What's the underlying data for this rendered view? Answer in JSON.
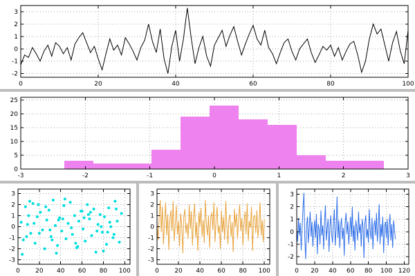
{
  "style": {
    "background": "#ffffff",
    "frame_color": "#bdbdbd",
    "grid_color": "#a0a0a0",
    "axis_color": "#000000",
    "tick_font_size": 9
  },
  "chart_data": [
    {
      "id": "top-noise-line",
      "type": "line",
      "color": "#000000",
      "xlim": [
        0,
        100
      ],
      "ylim": [
        -2.3,
        3.5
      ],
      "xticks": [
        0,
        20,
        40,
        60,
        80,
        100
      ],
      "yticks": [
        -2,
        -1,
        0,
        1,
        2,
        3
      ],
      "grid": true,
      "x0": 0,
      "dx": 1,
      "y": [
        -1.3,
        -0.5,
        -0.7,
        0.1,
        -0.4,
        -1.0,
        -0.2,
        0.3,
        -0.6,
        0.5,
        0.2,
        -0.4,
        0.1,
        -0.9,
        0.4,
        0.9,
        1.3,
        0.5,
        -0.3,
        0.2,
        -0.8,
        -1.7,
        -0.4,
        0.8,
        -0.1,
        0.3,
        -0.5,
        0.9,
        0.4,
        -0.2,
        -0.9,
        0.1,
        0.7,
        2.0,
        0.6,
        -0.3,
        1.6,
        -0.8,
        -2.0,
        0.2,
        1.5,
        -1.0,
        0.8,
        3.3,
        0.9,
        -1.2,
        0.1,
        1.0,
        -0.6,
        -1.4,
        0.3,
        0.9,
        1.5,
        0.2,
        1.1,
        1.8,
        0.6,
        -0.5,
        0.4,
        1.2,
        1.9,
        0.8,
        0.3,
        1.5,
        0.1,
        -0.4,
        -1.2,
        -0.3,
        0.5,
        0.8,
        -0.2,
        -0.9,
        0.0,
        0.4,
        0.8,
        -0.3,
        -1.1,
        -0.5,
        0.2,
        -0.1,
        0.3,
        -0.6,
        0.1,
        -0.9,
        -0.2,
        0.4,
        0.6,
        -0.5,
        -1.9,
        -1.0,
        0.8,
        2.0,
        1.2,
        1.6,
        0.3,
        -1.0,
        0.5,
        1.4,
        -0.2,
        -1.2,
        1.5
      ]
    },
    {
      "id": "pink-histogram",
      "type": "histogram",
      "color": "#ee82ee",
      "xlim": [
        -3,
        3
      ],
      "ylim": [
        0,
        26
      ],
      "xticks": [
        -3,
        -2,
        -1,
        0,
        1,
        2,
        3
      ],
      "yticks": [
        0,
        5,
        10,
        15,
        20,
        25
      ],
      "grid": true,
      "bin_width": 0.45,
      "centers": [
        -2.1,
        -1.65,
        -1.2,
        -0.75,
        -0.3,
        0.15,
        0.6,
        1.05,
        1.5,
        1.95,
        2.4
      ],
      "counts": [
        3,
        2,
        2,
        7,
        19,
        23,
        18,
        16,
        5,
        3,
        3
      ]
    },
    {
      "id": "cyan-scatter",
      "type": "scatter",
      "color": "#00dede",
      "xlim": [
        0,
        105
      ],
      "ylim": [
        -3.4,
        3.4
      ],
      "xticks": [
        0,
        20,
        40,
        60,
        80,
        100
      ],
      "yticks": [
        -3,
        -2,
        -1,
        0,
        1,
        2,
        3
      ],
      "grid": true,
      "x": [
        3,
        5,
        7,
        9,
        12,
        14,
        16,
        18,
        21,
        23,
        25,
        27,
        29,
        31,
        33,
        35,
        37,
        39,
        41,
        43,
        45,
        47,
        49,
        51,
        53,
        55,
        57,
        59,
        61,
        63,
        65,
        67,
        69,
        71,
        73,
        75,
        77,
        79,
        81,
        83,
        85,
        87,
        89,
        91,
        93,
        95,
        97,
        4,
        10,
        15,
        20,
        26,
        32,
        38,
        44,
        50,
        56,
        62,
        68,
        74,
        80,
        86,
        92,
        8,
        19,
        30,
        42,
        54,
        66,
        78,
        90,
        11,
        36,
        60,
        84
      ],
      "y": [
        0.4,
        -1.2,
        1.8,
        0.2,
        -0.6,
        2.1,
        -1.5,
        0.9,
        1.3,
        -0.3,
        -2.0,
        0.6,
        1.5,
        -0.9,
        2.4,
        0.1,
        -1.7,
        0.8,
        -0.4,
        1.9,
        -1.1,
        0.3,
        2.2,
        -0.7,
        1.0,
        -1.9,
        0.5,
        1.4,
        -0.2,
        -1.3,
        2.0,
        0.7,
        -0.8,
        1.6,
        -2.3,
        0.2,
        1.1,
        -0.5,
        0.9,
        -1.6,
        1.7,
        0.0,
        -1.0,
        2.3,
        0.5,
        -1.4,
        1.2,
        -2.5,
        1.0,
        0.3,
        -0.6,
        1.8,
        -1.2,
        0.6,
        2.5,
        -0.1,
        -1.8,
        0.8,
        1.3,
        -0.4,
        -2.2,
        0.4,
        1.6,
        -0.9,
        2.0,
        -0.3,
        0.7,
        -1.5,
        1.1,
        0.0,
        -0.7,
        2.3,
        -2.4,
        1.4,
        -0.5
      ]
    },
    {
      "id": "orange-noise-line",
      "type": "line",
      "color": "#e8a33c",
      "xlim": [
        0,
        105
      ],
      "ylim": [
        -3.4,
        3.4
      ],
      "xticks": [
        0,
        20,
        40,
        60,
        80,
        100
      ],
      "yticks": [
        -3,
        -2,
        -1,
        0,
        1,
        2,
        3
      ],
      "grid": true,
      "x0": 0,
      "dx": 1,
      "y": [
        0.3,
        -1.2,
        0.8,
        2.4,
        -0.5,
        1.8,
        -1.6,
        0.4,
        2.2,
        -0.8,
        1.1,
        -2.1,
        0.6,
        1.5,
        -0.4,
        2.3,
        -1.3,
        0.2,
        1.9,
        -0.7,
        0.5,
        -1.8,
        1.2,
        0.1,
        -2.4,
        0.9,
        1.6,
        -0.6,
        0.3,
        -1.1,
        2.0,
        -0.2,
        1.4,
        -1.7,
        0.7,
        2.1,
        -1.0,
        0.4,
        -2.2,
        1.3,
        0.0,
        1.7,
        -0.9,
        0.6,
        -1.5,
        2.4,
        0.2,
        -0.8,
        1.0,
        -1.9,
        0.8,
        1.3,
        -0.3,
        2.2,
        -1.4,
        0.5,
        1.8,
        -0.6,
        0.1,
        -2.0,
        1.5,
        -0.5,
        0.9,
        -1.2,
        2.3,
        0.3,
        -1.6,
        0.7,
        1.1,
        -0.9,
        0.4,
        -2.3,
        1.6,
        0.0,
        1.2,
        -1.1,
        0.6,
        2.0,
        -0.4,
        0.8,
        -1.7,
        0.2,
        1.4,
        -0.7,
        2.1,
        -1.3,
        0.5,
        -0.1,
        1.8,
        -2.2,
        0.9,
        1.0,
        -0.6,
        1.5,
        -1.0,
        0.3,
        2.2,
        -0.8,
        0.6,
        -1.4,
        0.7
      ]
    },
    {
      "id": "blue-noise-line",
      "type": "line",
      "color": "#2f6fe8",
      "xlim": [
        0,
        125
      ],
      "ylim": [
        -2.6,
        3.4
      ],
      "xticks": [
        0,
        20,
        40,
        60,
        80,
        100,
        120
      ],
      "yticks": [
        -2,
        -1,
        0,
        1,
        2,
        3
      ],
      "grid": true,
      "x0": 0,
      "dx": 1,
      "y": [
        0.2,
        -0.8,
        1.1,
        -0.3,
        0.7,
        -1.5,
        0.4,
        1.9,
        3.1,
        -0.6,
        -2.2,
        0.5,
        1.2,
        -0.9,
        0.3,
        1.6,
        -0.4,
        0.8,
        -1.2,
        0.1,
        0.9,
        -0.5,
        1.4,
        -1.8,
        0.6,
        0.2,
        -1.0,
        1.7,
        -0.3,
        0.5,
        -1.4,
        0.8,
        2.1,
        -0.7,
        0.3,
        1.0,
        -1.6,
        0.4,
        1.3,
        -0.2,
        -0.9,
        0.6,
        1.8,
        -1.1,
        0.2,
        2.8,
        -0.5,
        0.9,
        -1.3,
        0.4,
        1.1,
        -0.6,
        0.3,
        -1.9,
        0.7,
        1.5,
        -0.2,
        0.8,
        -1.0,
        0.1,
        1.2,
        -0.4,
        2.0,
        -0.8,
        0.5,
        -1.5,
        0.9,
        0.3,
        -0.7,
        1.6,
        -0.1,
        0.6,
        -1.2,
        1.0,
        0.4,
        -2.1,
        0.7,
        1.3,
        -0.5,
        0.2,
        -0.9,
        1.8,
        0.0,
        -0.6,
        1.1,
        -1.4,
        0.5,
        0.9,
        -0.3,
        1.5,
        -0.8,
        0.3,
        2.2,
        -1.0,
        0.6,
        -0.4,
        1.2,
        -1.7,
        0.4,
        0.8,
        -0.5,
        1.0,
        -1.1,
        0.3,
        1.4,
        -0.7,
        0.6,
        -1.3,
        0.9,
        0.2,
        -0.6
      ]
    }
  ]
}
